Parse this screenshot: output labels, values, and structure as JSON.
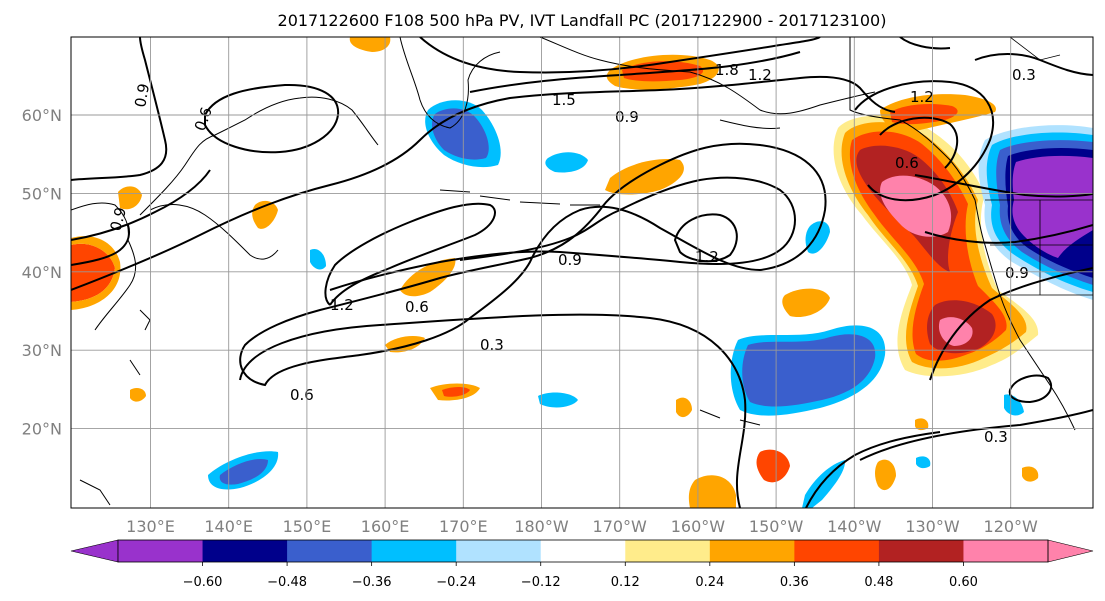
{
  "figure": {
    "title": "2017122600 F108 500 hPa PV, IVT Landfall PC (2017122900 - 2017123100)"
  },
  "map": {
    "lat_labels": [
      "60°N",
      "50°N",
      "40°N",
      "30°N",
      "20°N"
    ],
    "lon_labels": [
      "130°E",
      "140°E",
      "150°E",
      "160°E",
      "170°E",
      "180°W",
      "170°W",
      "160°W",
      "150°W",
      "140°W",
      "130°W",
      "120°W"
    ],
    "contour_labels": [
      "0.9",
      "1.5",
      "1.8",
      "1.2",
      "0.9",
      "0.3",
      "1.2",
      "0.9",
      "1.2",
      "0.6",
      "0.3",
      "0.6",
      "0.6",
      "0.3",
      "0.6",
      "0.6",
      "0.9",
      "0.9"
    ]
  },
  "colorbar": {
    "ticks": [
      "−0.60",
      "−0.48",
      "−0.36",
      "−0.24",
      "−0.12",
      "0.12",
      "0.24",
      "0.36",
      "0.48",
      "0.60"
    ],
    "colors": [
      "#9932cc",
      "#00008b",
      "#3a5fcd",
      "#00bfff",
      "#b0e2ff",
      "#ffffff",
      "#ffec8b",
      "#ffa500",
      "#ff4500",
      "#b22222",
      "#ff82ab",
      "#ff82ab"
    ]
  }
}
